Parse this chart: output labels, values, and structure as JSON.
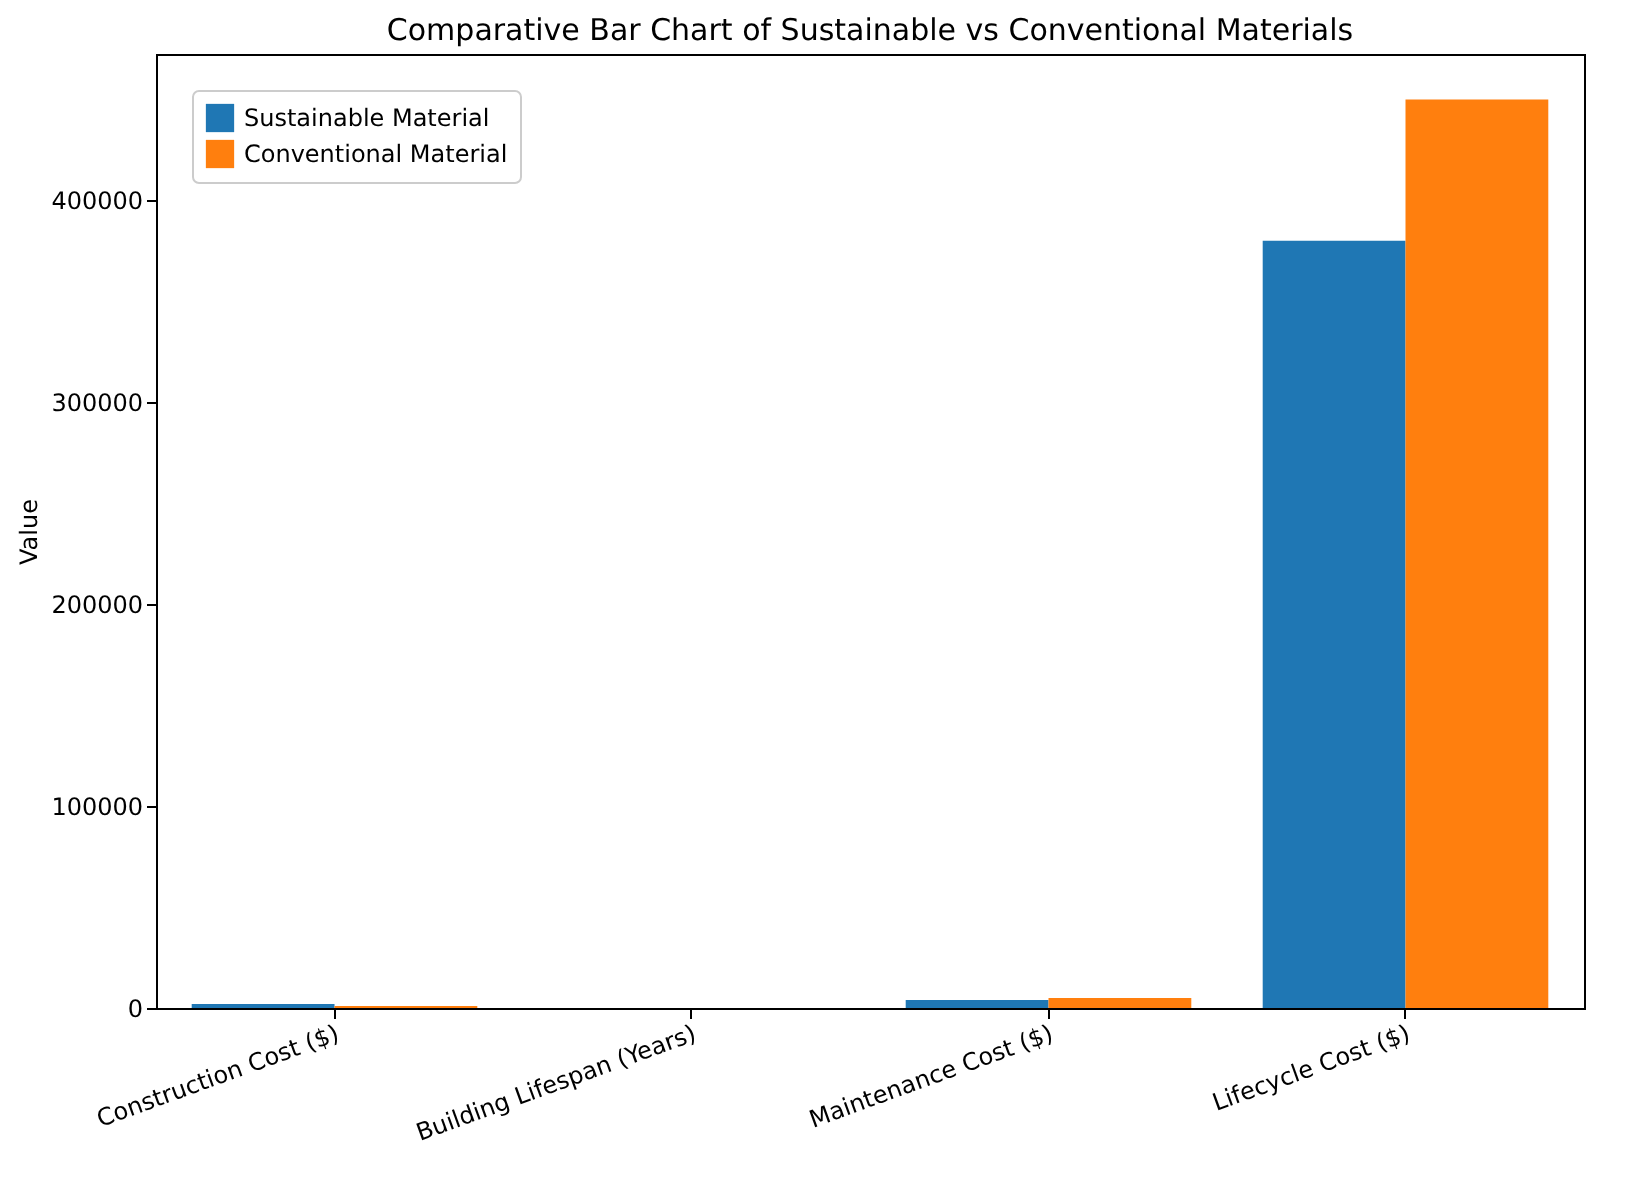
{
  "chart_data": {
    "type": "bar",
    "title": "Comparative Bar Chart of Sustainable vs Conventional Materials",
    "ylabel": "Value",
    "categories": [
      "Construction Cost ($)",
      "Building Lifespan (Years)",
      "Maintenance Cost ($)",
      "Lifecycle Cost ($)"
    ],
    "series": [
      {
        "name": "Sustainable Material",
        "color": "#1f77b4",
        "values": [
          2000,
          0,
          4000,
          380000
        ]
      },
      {
        "name": "Conventional Material",
        "color": "#ff7f0e",
        "values": [
          1000,
          0,
          5000,
          450000
        ]
      }
    ],
    "ylim": [
      0,
      472500
    ],
    "yticks": [
      0,
      100000,
      200000,
      300000,
      400000
    ],
    "grid": false,
    "legend": "top left"
  }
}
